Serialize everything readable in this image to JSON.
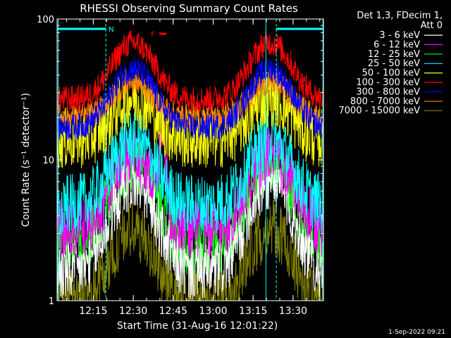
{
  "chart_data": {
    "type": "line",
    "title": "RHESSI Observing Summary Count Rates",
    "xlabel": "Start Time (31-Aug-16 12:01:22)",
    "ylabel": "Count Rate (s⁻¹ detector⁻¹)",
    "yscale": "log",
    "ylim": [
      1,
      100
    ],
    "xlim_minutes": [
      0,
      100
    ],
    "x_ticks": [
      {
        "t": 13.6,
        "label": "12:15"
      },
      {
        "t": 28.6,
        "label": "12:30"
      },
      {
        "t": 43.6,
        "label": "12:45"
      },
      {
        "t": 58.6,
        "label": "13:00"
      },
      {
        "t": 73.6,
        "label": "13:15"
      },
      {
        "t": 88.6,
        "label": "13:30"
      }
    ],
    "y_ticks": [
      {
        "v": 1,
        "label": "1"
      },
      {
        "v": 10,
        "label": "10"
      },
      {
        "v": 100,
        "label": "100"
      }
    ],
    "legend_header": [
      "Det 1,3, FDecim 1,",
      "Att 0"
    ],
    "series": [
      {
        "name": "3 - 6 keV",
        "color": "#ffffff"
      },
      {
        "name": "6 - 12 keV",
        "color": "#ff00ff"
      },
      {
        "name": "12 - 25 keV",
        "color": "#00ff00"
      },
      {
        "name": "25 - 50 keV",
        "color": "#00ffff"
      },
      {
        "name": "50 - 100 keV",
        "color": "#ffff00"
      },
      {
        "name": "100 - 300 keV",
        "color": "#ff0000"
      },
      {
        "name": "300 - 800 keV",
        "color": "#0000ff"
      },
      {
        "name": "800 - 7000 keV",
        "color": "#ff8000"
      },
      {
        "name": "7000 - 15000 keV",
        "color": "#808000"
      }
    ],
    "annotations": {
      "night_label": "N",
      "flare_label": "F",
      "night_intervals": [
        [
          0,
          18.3
        ],
        [
          82.3,
          100
        ]
      ],
      "flare_interval": [
        38.4,
        41.0
      ],
      "saa_markers": [
        0.4,
        78.4,
        99.8
      ]
    },
    "timestamp": "1-Sep-2022 09:21"
  }
}
